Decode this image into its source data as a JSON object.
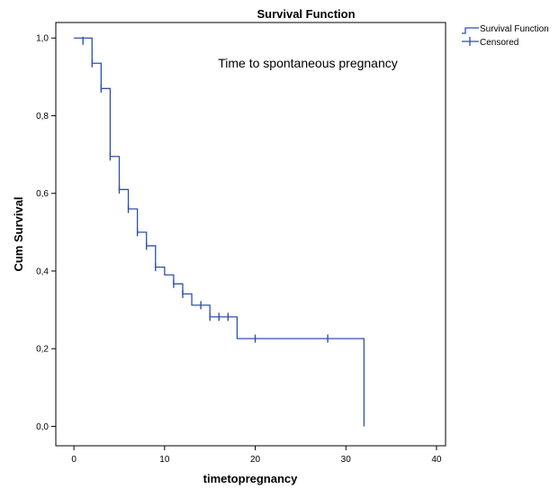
{
  "chart_data": {
    "type": "line",
    "title": "Survival Function",
    "annotation": "Time to spontaneous pregnancy",
    "xlabel": "timetopregnancy",
    "ylabel": "Cum Survival",
    "xlim": [
      -2,
      41
    ],
    "ylim": [
      -0.05,
      1.04
    ],
    "x_ticks": [
      0,
      10,
      20,
      30,
      40
    ],
    "x_tick_labels": [
      "0",
      "10",
      "20",
      "30",
      "40"
    ],
    "y_ticks": [
      0.0,
      0.2,
      0.4,
      0.6,
      0.8,
      1.0
    ],
    "y_tick_labels": [
      "0,0",
      "0,2",
      "0,4",
      "0,6",
      "0,8",
      "1,0"
    ],
    "grid": false,
    "legend_position": "top-right",
    "colors": {
      "line": "#2f4fae",
      "axis": "#000000"
    },
    "series": [
      {
        "name": "Survival Function",
        "kind": "step",
        "points": [
          [
            0,
            1.0
          ],
          [
            2,
            0.935
          ],
          [
            3,
            0.87
          ],
          [
            4,
            0.695
          ],
          [
            5,
            0.61
          ],
          [
            6,
            0.56
          ],
          [
            7,
            0.5
          ],
          [
            8,
            0.465
          ],
          [
            9,
            0.41
          ],
          [
            10,
            0.39
          ],
          [
            11,
            0.367
          ],
          [
            12,
            0.341
          ],
          [
            13,
            0.312
          ],
          [
            15,
            0.282
          ],
          [
            18,
            0.226
          ],
          [
            32,
            0.226
          ],
          [
            32,
            0.0
          ]
        ]
      },
      {
        "name": "Censored",
        "kind": "marker",
        "points": [
          [
            1,
            0.993
          ],
          [
            2,
            0.935
          ],
          [
            3,
            0.87
          ],
          [
            4,
            0.695
          ],
          [
            5,
            0.61
          ],
          [
            6,
            0.56
          ],
          [
            7,
            0.5
          ],
          [
            8,
            0.465
          ],
          [
            9,
            0.41
          ],
          [
            11,
            0.367
          ],
          [
            12,
            0.341
          ],
          [
            14,
            0.312
          ],
          [
            15,
            0.282
          ],
          [
            16,
            0.282
          ],
          [
            17,
            0.282
          ],
          [
            20,
            0.226
          ],
          [
            28,
            0.226
          ]
        ]
      }
    ]
  }
}
